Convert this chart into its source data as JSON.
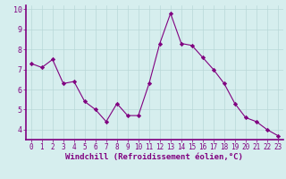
{
  "x": [
    0,
    1,
    2,
    3,
    4,
    5,
    6,
    7,
    8,
    9,
    10,
    11,
    12,
    13,
    14,
    15,
    16,
    17,
    18,
    19,
    20,
    21,
    22,
    23
  ],
  "y": [
    7.3,
    7.1,
    7.5,
    6.3,
    6.4,
    5.4,
    5.0,
    4.4,
    5.3,
    4.7,
    4.7,
    6.3,
    8.3,
    9.8,
    8.3,
    8.2,
    7.6,
    7.0,
    6.3,
    5.3,
    4.6,
    4.4,
    4.0,
    3.7
  ],
  "line_color": "#800080",
  "marker": "D",
  "marker_size": 2.2,
  "bg_color": "#d6eeee",
  "grid_color": "#b8d8d8",
  "xlabel": "Windchill (Refroidissement éolien,°C)",
  "xlim": [
    -0.5,
    23.5
  ],
  "ylim": [
    3.5,
    10.2
  ],
  "yticks": [
    4,
    5,
    6,
    7,
    8,
    9,
    10
  ],
  "xticks": [
    0,
    1,
    2,
    3,
    4,
    5,
    6,
    7,
    8,
    9,
    10,
    11,
    12,
    13,
    14,
    15,
    16,
    17,
    18,
    19,
    20,
    21,
    22,
    23
  ],
  "tick_color": "#800080",
  "spine_color": "#800080",
  "xlabel_fontsize": 6.5,
  "tick_fontsize": 5.5,
  "ytick_fontsize": 6.0
}
